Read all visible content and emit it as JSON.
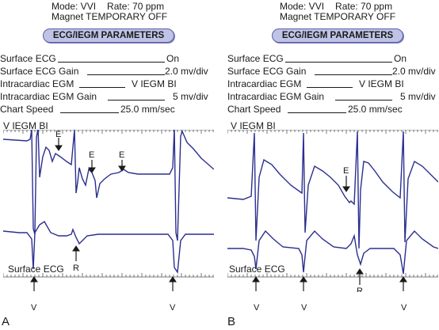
{
  "panels": [
    {
      "letter": "A",
      "mode": "Mode: VVI",
      "rate": "Rate: 70 ppm",
      "magnet": "Magnet TEMPORARY OFF",
      "params_title": "ECG/IEGM PARAMETERS",
      "params": [
        {
          "label": "Surface ECG",
          "value": "On"
        },
        {
          "label": "Surface ECG Gain",
          "value": "2.0 mv/div"
        },
        {
          "label": "Intracardiac EGM",
          "value": "V IEGM BI"
        },
        {
          "label": "Intracardiac EGM Gain",
          "value": "5 mv/div"
        },
        {
          "label": "Chart Speed",
          "value": "25.0 mm/sec"
        }
      ],
      "egm_label": "V IEGM BI",
      "surface_label": "Surface ECG",
      "markers": {
        "e": "E",
        "r": "R",
        "v": "V"
      }
    },
    {
      "letter": "B",
      "mode": "Mode: VVI",
      "rate": "Rate: 70 ppm",
      "magnet": "Magnet TEMPORARY OFF",
      "params_title": "ECG/IEGM PARAMETERS",
      "params": [
        {
          "label": "Surface ECG",
          "value": "On"
        },
        {
          "label": "Surface ECG Gain",
          "value": "2.0 mv/div"
        },
        {
          "label": "Intracardiac EGM",
          "value": "V IEGM BI"
        },
        {
          "label": "Intracardiac EGM Gain",
          "value": "5 mv/div"
        },
        {
          "label": "Chart Speed",
          "value": "25.0 mm/sec"
        }
      ],
      "egm_label": "V IEGM BI",
      "surface_label": "Surface ECG",
      "markers": {
        "e": "E",
        "r": "R",
        "v": "V"
      }
    }
  ],
  "colors": {
    "trace": "#2b2f8f",
    "pill_bg": "#bfc3e6",
    "pill_border": "#5a5fa8",
    "text": "#1a1a1a"
  }
}
